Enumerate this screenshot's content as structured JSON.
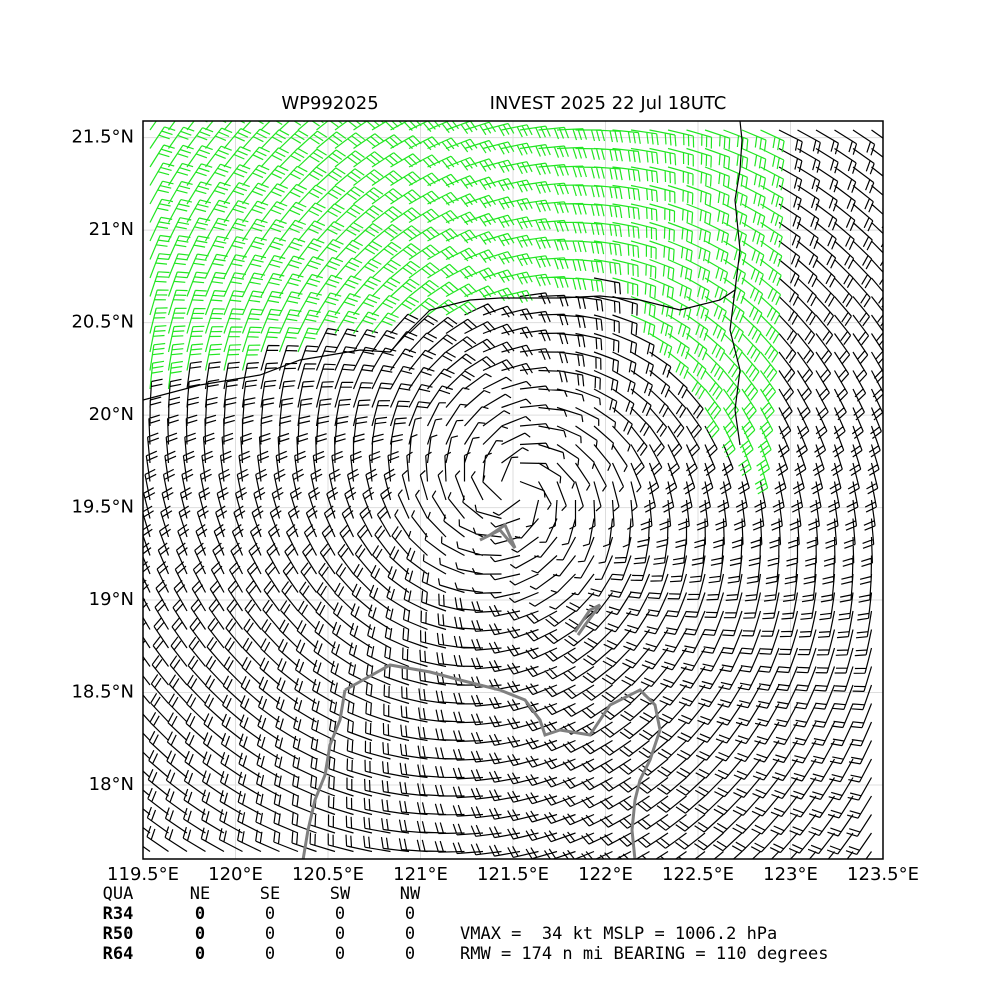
{
  "chart_data": {
    "type": "map",
    "title": "WP992025",
    "subtitle": "INVEST 2025 22 Jul 18UTC",
    "xlim": [
      119.5,
      123.5
    ],
    "xticks": [
      {
        "value": 119.5,
        "label": "119.5°E"
      },
      {
        "value": 120,
        "label": "120°E"
      },
      {
        "value": 120.5,
        "label": "120.5°E"
      },
      {
        "value": 121,
        "label": "121°E"
      },
      {
        "value": 121.5,
        "label": "121.5°E"
      },
      {
        "value": 122,
        "label": "122°E"
      },
      {
        "value": 122.5,
        "label": "122.5°E"
      },
      {
        "value": 123,
        "label": "123°E"
      },
      {
        "value": 123.5,
        "label": "123.5°E"
      }
    ],
    "ylim": [
      17.6,
      21.59
    ],
    "yticks": [
      {
        "value": 18,
        "label": "18°N"
      },
      {
        "value": 18.5,
        "label": "18.5°N"
      },
      {
        "value": 19,
        "label": "19°N"
      },
      {
        "value": 19.5,
        "label": "19.5°N"
      },
      {
        "value": 20,
        "label": "20°N"
      },
      {
        "value": 20.5,
        "label": "20.5°N"
      },
      {
        "value": 21,
        "label": "21°N"
      },
      {
        "value": 21.5,
        "label": "21.5°N"
      }
    ],
    "grid": true
  },
  "radii_table": {
    "columns": [
      "QUA",
      "NE",
      "SE",
      "SW",
      "NW"
    ],
    "rows": [
      {
        "label": "R34",
        "values": [
          0,
          0,
          0,
          0
        ]
      },
      {
        "label": "R50",
        "values": [
          0,
          0,
          0,
          0
        ]
      },
      {
        "label": "R64",
        "values": [
          0,
          0,
          0,
          0
        ]
      }
    ]
  },
  "storm_info": [
    "VMAX =  34 kt MSLP = 1006.2 hPa",
    "RMW = 174 n mi BEARING = 110 degrees"
  ]
}
